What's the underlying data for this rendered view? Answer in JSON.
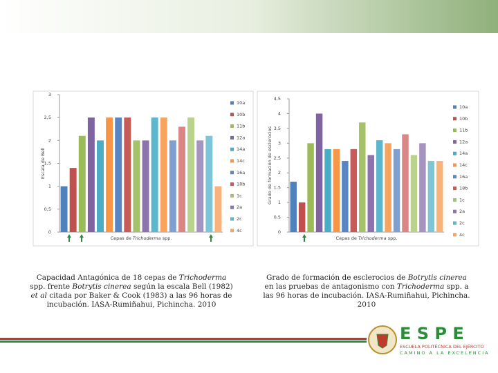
{
  "chart_data": [
    {
      "type": "bar",
      "y_label": "Escala de Bell",
      "x_label": [
        "Cepas de ",
        "Trichoderma",
        " spp."
      ],
      "categories": [
        "10a",
        "10b",
        "11b",
        "12a",
        "14a",
        "14c",
        "16a",
        "18b",
        "1c",
        "2a",
        "2c",
        "4c",
        null,
        null,
        null,
        null,
        null,
        null
      ],
      "values": [
        1.0,
        1.4,
        2.1,
        2.5,
        2.0,
        2.5,
        2.5,
        2.5,
        2.0,
        2.0,
        2.5,
        2.5,
        2.0,
        2.3,
        2.5,
        2.0,
        2.1,
        1.0
      ],
      "colors": [
        "#4f81bd",
        "#c0504d",
        "#9bbb59",
        "#8064a2",
        "#4bacc6",
        "#f79646",
        "#5b84c4",
        "#c85a57",
        "#a5c266",
        "#8c73ad",
        "#5cb6cc",
        "#f8a45e",
        "#7f9fd0",
        "#d98684",
        "#b9d38d",
        "#a593c0",
        "#7fc5d8",
        "#fab17a"
      ],
      "ylim": [
        0,
        3
      ],
      "yticks": [
        0,
        {
          "value": 0.5,
          "label": "0,5"
        },
        1,
        {
          "value": 1.5,
          "label": "1,5"
        },
        2,
        {
          "value": 2.5,
          "label": "2,5"
        },
        3
      ]
    },
    {
      "type": "bar",
      "y_label": "Grado de formación de esclerocios",
      "x_label": [
        "Cepas de ",
        "Trichoderma",
        " spp."
      ],
      "categories": [
        "10a",
        "10b",
        "11b",
        "12a",
        "14a",
        "14c",
        "16a",
        "18b",
        "1c",
        "2a",
        "2c",
        "4c",
        null,
        null,
        null,
        null,
        null,
        null
      ],
      "values": [
        1.7,
        1.0,
        3.0,
        4.0,
        2.8,
        2.8,
        2.4,
        2.8,
        3.7,
        2.6,
        3.1,
        3.0,
        2.8,
        3.3,
        2.6,
        3.0,
        2.4,
        2.4
      ],
      "colors": [
        "#4f81bd",
        "#c0504d",
        "#9bbb59",
        "#8064a2",
        "#4bacc6",
        "#f79646",
        "#5b84c4",
        "#c85a57",
        "#a5c266",
        "#8c73ad",
        "#5cb6cc",
        "#f8a45e",
        "#7f9fd0",
        "#d98684",
        "#b9d38d",
        "#a593c0",
        "#7fc5d8",
        "#fab17a"
      ],
      "ylim": [
        0,
        4.5
      ],
      "yticks": [
        0,
        {
          "value": 0.5,
          "label": "0,5"
        },
        1,
        {
          "value": 1.5,
          "label": "1,5"
        },
        2,
        {
          "value": 2.5,
          "label": "2,5"
        },
        3,
        {
          "value": 3.5,
          "label": "3,5"
        },
        4,
        {
          "value": 4.5,
          "label": "4,5"
        }
      ]
    }
  ],
  "captions": [
    [
      "Capacidad Antagónica de 18 cepas de ",
      "Trichoderma",
      " spp. frente ",
      "Botrytis cinerea",
      " según la escala Bell (1982) ",
      "et al",
      " citada por Baker & Cook (1983) a las 96 horas de incubación. IASA-Rumiñahui, Pichincha. 2010"
    ],
    [
      "Grado de formación de esclerocios de ",
      "Botrytis cinerea",
      " en las pruebas de antagonismo con ",
      "Trichoderma",
      " spp. a las 96 horas de incubación. IASA-Rumiñahui, Pichincha. 2010"
    ]
  ],
  "logo": {
    "name": "E S P E",
    "line1": "ESCUELA POLITÉCNICA DEL EJÉRCITO",
    "line2": "CAMINO A LA EXCELENCIA"
  }
}
